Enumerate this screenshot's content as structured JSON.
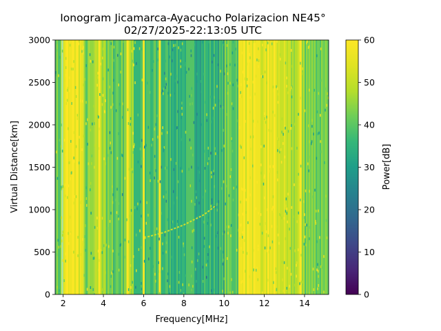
{
  "chart_data": {
    "type": "heatmap",
    "title": "Ionogram Jicamarca-Ayacucho Polarizacion NE45°",
    "subtitle": "02/27/2025-22:13:05 UTC",
    "xlabel": "Frequency[MHz]",
    "ylabel": "Virtual Distance[km]",
    "xlim": [
      1.6,
      15.2
    ],
    "ylim": [
      0,
      3000
    ],
    "xticks": [
      2,
      4,
      6,
      8,
      10,
      12,
      14
    ],
    "yticks": [
      0,
      500,
      1000,
      1500,
      2000,
      2500,
      3000
    ],
    "colorbar": {
      "label": "Power[dB]",
      "range": [
        0,
        60
      ],
      "ticks": [
        0,
        10,
        20,
        30,
        40,
        50,
        60
      ],
      "colormap": "viridis"
    },
    "bands": [
      {
        "x": [
          1.6,
          1.9
        ],
        "level": 42
      },
      {
        "x": [
          2.0,
          3.0
        ],
        "level": 55
      },
      {
        "x": [
          3.0,
          3.6
        ],
        "level": 44
      },
      {
        "x": [
          3.6,
          4.1
        ],
        "level": 50
      },
      {
        "x": [
          4.1,
          5.0
        ],
        "level": 40
      },
      {
        "x": [
          5.0,
          5.5
        ],
        "level": 47
      },
      {
        "x": [
          5.5,
          7.0
        ],
        "level": 38
      },
      {
        "x": [
          7.0,
          8.5
        ],
        "level": 36
      },
      {
        "x": [
          8.5,
          10.0
        ],
        "level": 35
      },
      {
        "x": [
          10.0,
          10.7
        ],
        "level": 41
      },
      {
        "x": [
          10.7,
          11.8
        ],
        "level": 56
      },
      {
        "x": [
          11.8,
          13.0
        ],
        "level": 52
      },
      {
        "x": [
          13.0,
          14.0
        ],
        "level": 48
      },
      {
        "x": [
          14.0,
          15.2
        ],
        "level": 44
      }
    ],
    "trace": {
      "description_points": [
        [
          6.2,
          680
        ],
        [
          7.0,
          730
        ],
        [
          8.0,
          820
        ],
        [
          9.0,
          940
        ],
        [
          9.6,
          1050
        ]
      ],
      "level": 52
    },
    "bright_lines": [
      2.2,
      2.5,
      2.7,
      3.8,
      5.2,
      6.0,
      6.8,
      11.0,
      11.2,
      11.5,
      12.2,
      12.5,
      13.8
    ]
  }
}
